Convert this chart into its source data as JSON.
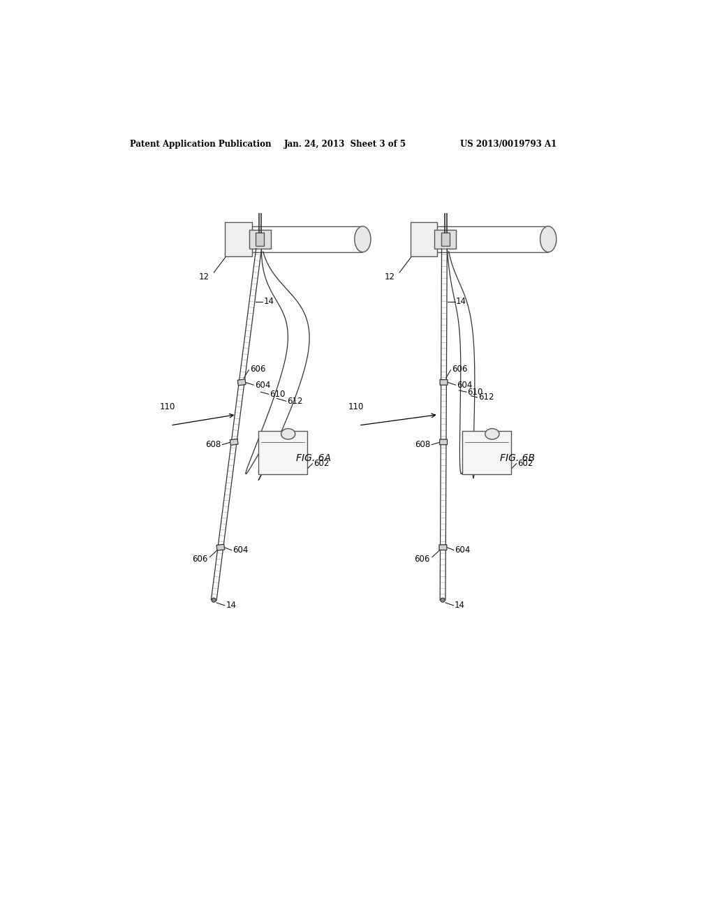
{
  "bg_color": "#ffffff",
  "header_left": "Patent Application Publication",
  "header_center": "Jan. 24, 2013  Sheet 3 of 5",
  "header_right": "US 2013/0019793 A1",
  "fig_label_A": "FIG. 6A",
  "fig_label_B": "FIG. 6B"
}
